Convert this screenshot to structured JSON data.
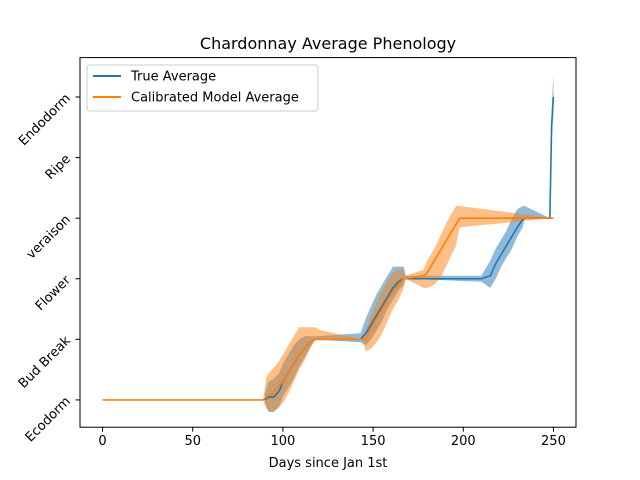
{
  "chart_data": {
    "type": "line",
    "title": "Chardonnay Average Phenology",
    "xlabel": "Days since Jan 1st",
    "ylabel": "",
    "xlim": [
      -12.5,
      262.5
    ],
    "ylim": [
      -0.45,
      5.65
    ],
    "x_ticks": [
      0,
      50,
      100,
      150,
      200,
      250
    ],
    "y_ticks": [
      0,
      1,
      2,
      3,
      4,
      5
    ],
    "y_tick_labels": [
      "Ecodorm",
      "Bud Break",
      "Flower",
      "veraison",
      "Ripe",
      "Endodorm"
    ],
    "legend": {
      "position": "top-left",
      "entries": [
        "True Average",
        "Calibrated Model Average"
      ]
    },
    "grid": false,
    "colors": {
      "true": "#1f77b4",
      "model": "#ff7f0e"
    },
    "series": [
      {
        "name": "True Average",
        "color": "#1f77b4",
        "x": [
          90,
          92,
          95,
          98,
          100,
          103,
          106,
          109,
          112,
          115,
          118,
          143,
          146,
          149,
          152,
          155,
          158,
          161,
          164,
          167,
          168,
          210,
          215,
          218,
          221,
          224,
          227,
          230,
          233,
          234,
          248,
          249,
          250
        ],
        "y": [
          0,
          0.05,
          0.05,
          0.15,
          0.3,
          0.45,
          0.6,
          0.75,
          0.85,
          0.95,
          1.0,
          1.0,
          1.1,
          1.25,
          1.4,
          1.55,
          1.7,
          1.85,
          1.95,
          2.0,
          2.0,
          2.0,
          2.05,
          2.25,
          2.4,
          2.55,
          2.7,
          2.85,
          2.98,
          3.0,
          3.0,
          4.55,
          5.0
        ],
        "band_lower": [
          -0.05,
          -0.2,
          -0.2,
          -0.1,
          0.05,
          0.2,
          0.35,
          0.55,
          0.7,
          0.85,
          1.0,
          0.95,
          0.9,
          1.0,
          1.15,
          1.3,
          1.5,
          1.65,
          1.8,
          1.9,
          2.0,
          1.95,
          1.85,
          2.0,
          2.2,
          2.35,
          2.5,
          2.7,
          2.85,
          3.0,
          3.0,
          4.3,
          4.7
        ],
        "band_upper": [
          0.1,
          0.3,
          0.35,
          0.45,
          0.6,
          0.75,
          0.9,
          1.0,
          1.05,
          1.05,
          1.05,
          1.1,
          1.35,
          1.55,
          1.75,
          1.9,
          2.05,
          2.2,
          2.2,
          2.2,
          2.05,
          2.05,
          2.3,
          2.5,
          2.65,
          2.8,
          3.0,
          3.15,
          3.2,
          3.2,
          3.0,
          4.8,
          5.4
        ]
      },
      {
        "name": "Calibrated Model Average",
        "color": "#ff7f0e",
        "x": [
          0,
          50,
          89,
          91,
          94,
          97,
          100,
          103,
          106,
          109,
          112,
          115,
          118,
          121,
          144,
          146,
          149,
          152,
          155,
          158,
          161,
          164,
          167,
          168,
          178,
          180,
          184,
          188,
          192,
          196,
          198,
          250
        ],
        "y": [
          0,
          0,
          0,
          0.05,
          0.1,
          0.2,
          0.3,
          0.45,
          0.6,
          0.75,
          0.85,
          0.95,
          1.0,
          1.0,
          1.0,
          1.0,
          1.2,
          1.35,
          1.5,
          1.65,
          1.8,
          1.9,
          2.0,
          2.0,
          2.05,
          2.1,
          2.3,
          2.5,
          2.7,
          2.9,
          3.0,
          3.0
        ],
        "band_lower": [
          0,
          0,
          0,
          -0.15,
          -0.2,
          -0.15,
          -0.05,
          0.1,
          0.3,
          0.5,
          0.65,
          0.85,
          1.0,
          1.0,
          1.0,
          0.8,
          0.85,
          0.95,
          1.1,
          1.3,
          1.5,
          1.65,
          1.85,
          2.0,
          1.85,
          1.85,
          1.9,
          2.05,
          2.3,
          2.55,
          2.85,
          3.0
        ],
        "band_upper": [
          0,
          0,
          0,
          0.4,
          0.5,
          0.6,
          0.75,
          0.9,
          1.05,
          1.2,
          1.2,
          1.2,
          1.2,
          1.15,
          1.0,
          1.15,
          1.4,
          1.6,
          1.8,
          1.95,
          2.1,
          2.15,
          2.15,
          2.05,
          2.15,
          2.3,
          2.5,
          2.75,
          3.0,
          3.2,
          3.2,
          3.0
        ]
      }
    ]
  }
}
